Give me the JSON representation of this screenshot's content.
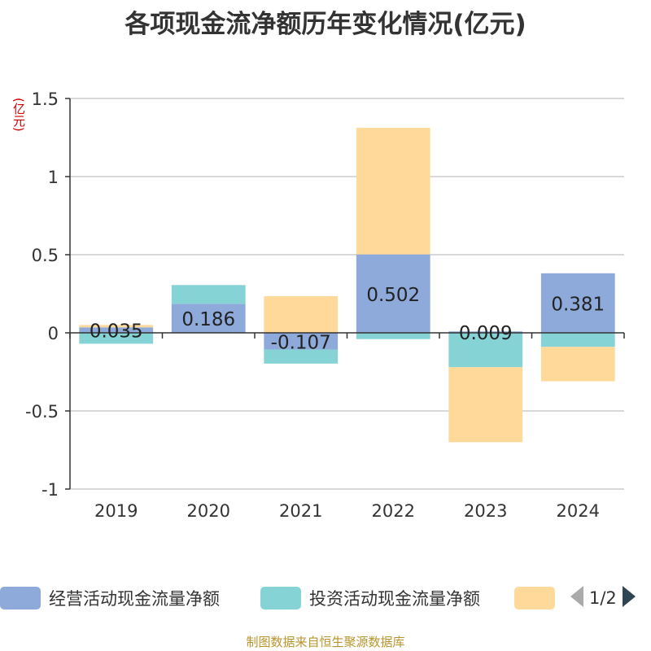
{
  "title": "各项现金流净额历年变化情况(亿元)",
  "unit": "(亿元)",
  "source": "制图数据来自恒生聚源数据库",
  "legend": {
    "items": [
      {
        "label": "经营活动现金流量净额",
        "color": "#8eaadb"
      },
      {
        "label": "投资活动现金流量净额",
        "color": "#86d3d6"
      },
      {
        "label": "",
        "color": "#ffd999"
      }
    ],
    "page": "1/2"
  },
  "chart_data": {
    "type": "bar",
    "stacked": true,
    "categories": [
      "2019",
      "2020",
      "2021",
      "2022",
      "2023",
      "2024"
    ],
    "series": [
      {
        "name": "经营活动现金流量净额",
        "color": "#8eaadb",
        "values": [
          0.035,
          0.186,
          -0.107,
          0.502,
          0.009,
          0.381
        ],
        "labels": [
          "0.035",
          "0.186",
          "-0.107",
          "0.502",
          "0.009",
          "0.381"
        ]
      },
      {
        "name": "投资活动现金流量净额",
        "color": "#86d3d6",
        "values": [
          -0.07,
          0.12,
          -0.09,
          -0.04,
          -0.22,
          -0.09
        ]
      },
      {
        "name": "",
        "color": "#ffd999",
        "values": [
          0.015,
          0,
          0.235,
          0.81,
          -0.48,
          -0.22
        ]
      }
    ],
    "y_ticks": [
      "1.5",
      "1",
      "0.5",
      "0",
      "-0.5",
      "-1"
    ],
    "ylim": [
      -1,
      1.5
    ],
    "grid": true,
    "legend_position": "bottom"
  }
}
